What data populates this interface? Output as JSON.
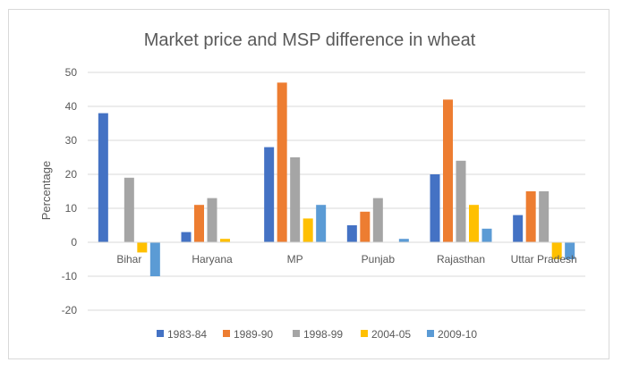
{
  "chart_data": {
    "type": "bar",
    "title": "Market price and MSP difference in wheat",
    "xlabel": "",
    "ylabel": "Percentage",
    "ylim": [
      -20,
      50
    ],
    "yticks": [
      -20,
      -10,
      0,
      10,
      20,
      30,
      40,
      50
    ],
    "grid": true,
    "legend_position": "bottom",
    "categories": [
      "Bihar",
      "Haryana",
      "MP",
      "Punjab",
      "Rajasthan",
      "Uttar Pradesh"
    ],
    "series": [
      {
        "name": "1983-84",
        "color": "#4472c4",
        "values": [
          38,
          3,
          28,
          5,
          20,
          8
        ]
      },
      {
        "name": "1989-90",
        "color": "#ed7d31",
        "values": [
          0,
          11,
          47,
          9,
          42,
          15
        ]
      },
      {
        "name": "1998-99",
        "color": "#a5a5a5",
        "values": [
          19,
          13,
          25,
          13,
          24,
          15
        ]
      },
      {
        "name": "2004-05",
        "color": "#ffc000",
        "values": [
          -3,
          1,
          7,
          0,
          11,
          -5
        ]
      },
      {
        "name": "2009-10",
        "color": "#5b9bd5",
        "values": [
          -10,
          0,
          11,
          1,
          4,
          -5
        ]
      }
    ]
  }
}
